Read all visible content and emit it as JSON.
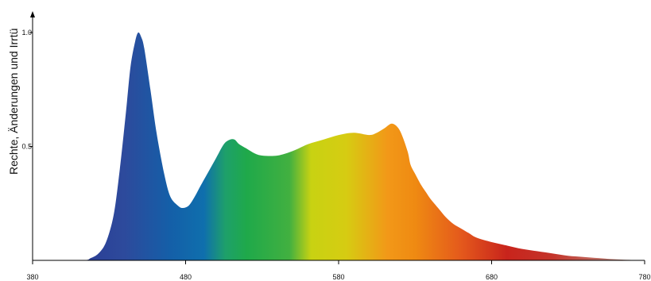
{
  "chart_data": {
    "type": "area",
    "title": "",
    "xlabel": "",
    "ylabel": "",
    "side_text": "Rechte, Änderungen und Irrtü",
    "xlim": [
      380,
      780
    ],
    "ylim": [
      0,
      1.0
    ],
    "x_ticks": [
      380,
      480,
      580,
      680,
      780
    ],
    "x_tick_labels": [
      "380",
      "480",
      "580",
      "680",
      "780"
    ],
    "y_ticks": [
      0.5,
      1.0
    ],
    "y_tick_labels": [
      "0.5",
      "1.0"
    ],
    "grid": false,
    "legend": "none",
    "series": [
      {
        "x": [
          380,
          412,
          418,
          423,
          428,
          433,
          437,
          441,
          444,
          447,
          449,
          451,
          453,
          457,
          461,
          466,
          470,
          475,
          478,
          482,
          486,
          490,
          495,
          500,
          505,
          509,
          512,
          515,
          520,
          525,
          530,
          540,
          550,
          560,
          570,
          580,
          590,
          600,
          605,
          610,
          615,
          620,
          625,
          627,
          630,
          634,
          637,
          640,
          645,
          650,
          655,
          660,
          665,
          670,
          680,
          690,
          700,
          710,
          720,
          730,
          740,
          750,
          760,
          770,
          780
        ],
        "values": [
          0.0,
          0.0,
          0.01,
          0.03,
          0.08,
          0.2,
          0.4,
          0.65,
          0.85,
          0.96,
          1.0,
          0.98,
          0.93,
          0.75,
          0.56,
          0.38,
          0.28,
          0.24,
          0.23,
          0.24,
          0.28,
          0.33,
          0.39,
          0.45,
          0.51,
          0.53,
          0.53,
          0.51,
          0.49,
          0.47,
          0.46,
          0.46,
          0.48,
          0.51,
          0.53,
          0.55,
          0.56,
          0.55,
          0.56,
          0.58,
          0.6,
          0.57,
          0.48,
          0.42,
          0.38,
          0.33,
          0.3,
          0.27,
          0.23,
          0.19,
          0.16,
          0.14,
          0.12,
          0.1,
          0.08,
          0.065,
          0.05,
          0.04,
          0.03,
          0.02,
          0.015,
          0.01,
          0.005,
          0.002,
          0.0
        ]
      }
    ],
    "gradient_stops": [
      {
        "x": 380,
        "color": "#2a2f8c"
      },
      {
        "x": 440,
        "color": "#2d4a9c"
      },
      {
        "x": 470,
        "color": "#145fa8"
      },
      {
        "x": 492,
        "color": "#0f6fad"
      },
      {
        "x": 506,
        "color": "#1ea06a"
      },
      {
        "x": 520,
        "color": "#1fa94a"
      },
      {
        "x": 548,
        "color": "#42b040"
      },
      {
        "x": 562,
        "color": "#c8d212"
      },
      {
        "x": 585,
        "color": "#d6cc12"
      },
      {
        "x": 612,
        "color": "#f29818"
      },
      {
        "x": 630,
        "color": "#ef8a12"
      },
      {
        "x": 660,
        "color": "#e4591c"
      },
      {
        "x": 690,
        "color": "#c8241c"
      },
      {
        "x": 720,
        "color": "#c4342a"
      },
      {
        "x": 780,
        "color": "#b8a49a"
      }
    ],
    "axis_color": "#000000"
  }
}
